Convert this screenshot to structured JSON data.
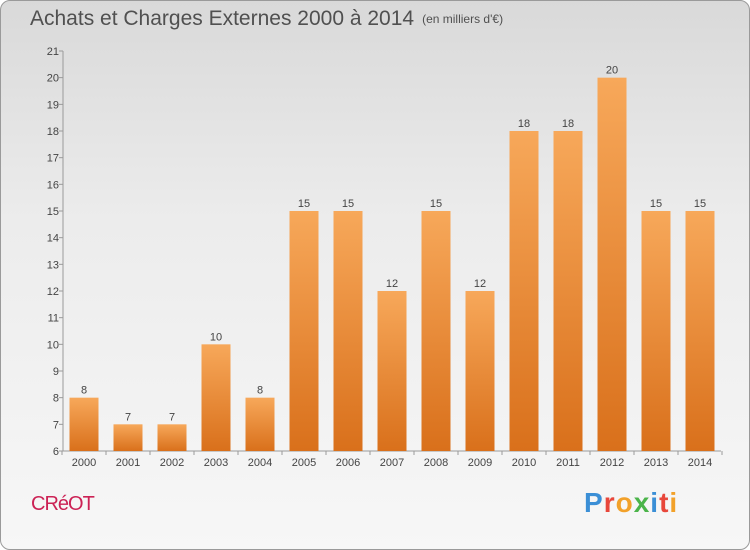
{
  "title": "Achats et Charges Externes 2000 à 2014",
  "unit_label": "(en milliers d'€)",
  "commune": "CRéOT",
  "logo": {
    "letters": [
      "P",
      "r",
      "o",
      "x",
      "i",
      "t",
      "i"
    ],
    "colors": [
      "#3b8fd6",
      "#e8473b",
      "#f2a12a",
      "#4bb44a",
      "#3b8fd6",
      "#e8473b",
      "#f2a12a"
    ]
  },
  "chart_data": {
    "type": "bar",
    "title": "Achats et Charges Externes 2000 à 2014",
    "categories": [
      "2000",
      "2001",
      "2002",
      "2003",
      "2004",
      "2005",
      "2006",
      "2007",
      "2008",
      "2009",
      "2010",
      "2011",
      "2012",
      "2013",
      "2014"
    ],
    "values": [
      8,
      7,
      7,
      10,
      8,
      15,
      15,
      12,
      15,
      12,
      18,
      18,
      20,
      15,
      15
    ],
    "ylim": [
      6,
      21
    ],
    "yticks": [
      6,
      7,
      8,
      9,
      10,
      11,
      12,
      13,
      14,
      15,
      16,
      17,
      18,
      19,
      20,
      21
    ],
    "grid": false,
    "bar_color": "#e8862a",
    "value_labels": true
  }
}
